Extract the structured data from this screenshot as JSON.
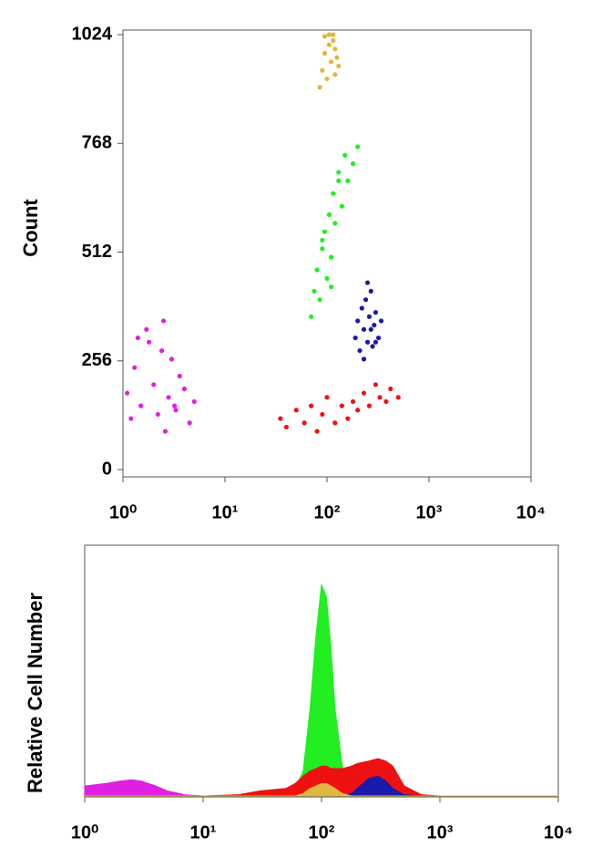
{
  "chart_data": [
    {
      "type": "scatter",
      "y_label": "Count",
      "xscale": "log",
      "xlim": [
        1,
        10000
      ],
      "ylim": [
        0,
        1024
      ],
      "xticks": [
        {
          "value": 1,
          "label": "10⁰"
        },
        {
          "value": 10,
          "label": "10¹"
        },
        {
          "value": 100,
          "label": "10²"
        },
        {
          "value": 1000,
          "label": "10³"
        },
        {
          "value": 10000,
          "label": "10⁴"
        }
      ],
      "yticks": [
        0,
        256,
        512,
        768,
        1024
      ],
      "series": [
        {
          "color": "#e020e0",
          "x": [
            1.1,
            1.3,
            1.5,
            1.8,
            2.0,
            2.2,
            2.5,
            2.8,
            3.0,
            3.3,
            3.6,
            4.0,
            4.5,
            5.0,
            1.2,
            1.7,
            2.4,
            3.2,
            1.4,
            2.6
          ],
          "values": [
            180,
            240,
            150,
            300,
            200,
            130,
            350,
            170,
            260,
            140,
            220,
            190,
            110,
            160,
            120,
            330,
            280,
            150,
            310,
            90
          ]
        },
        {
          "color": "#ee1111",
          "x": [
            35,
            40,
            50,
            60,
            70,
            80,
            90,
            100,
            120,
            140,
            160,
            180,
            200,
            230,
            260,
            300,
            330,
            380,
            420,
            500
          ],
          "values": [
            120,
            100,
            140,
            110,
            150,
            90,
            130,
            170,
            110,
            150,
            120,
            160,
            140,
            180,
            150,
            200,
            170,
            160,
            190,
            170
          ]
        },
        {
          "color": "#22ee22",
          "x": [
            70,
            75,
            80,
            85,
            90,
            95,
            100,
            105,
            110,
            115,
            120,
            130,
            140,
            150,
            160,
            180,
            200,
            90,
            110,
            130
          ],
          "values": [
            360,
            420,
            470,
            400,
            520,
            560,
            450,
            600,
            500,
            650,
            580,
            700,
            620,
            740,
            680,
            720,
            760,
            540,
            430,
            680
          ]
        },
        {
          "color": "#1a1aaa",
          "x": [
            190,
            200,
            210,
            220,
            230,
            240,
            250,
            260,
            270,
            280,
            290,
            300,
            320,
            340,
            250,
            230,
            270,
            300
          ],
          "values": [
            310,
            350,
            280,
            380,
            330,
            400,
            300,
            360,
            420,
            290,
            340,
            370,
            310,
            350,
            440,
            260,
            330,
            300
          ]
        },
        {
          "color": "#e0b840",
          "x": [
            85,
            90,
            95,
            100,
            105,
            110,
            115,
            120,
            125,
            130,
            95,
            105,
            115,
            120
          ],
          "values": [
            900,
            940,
            980,
            920,
            1000,
            960,
            1010,
            930,
            970,
            950,
            1020,
            1024,
            1024,
            990
          ]
        }
      ]
    },
    {
      "type": "area",
      "y_label": "Relative Cell Number",
      "xscale": "log",
      "xlim": [
        1,
        10000
      ],
      "ylim": [
        0,
        100
      ],
      "xticks": [
        {
          "value": 1,
          "label": "10⁰"
        },
        {
          "value": 10,
          "label": "10¹"
        },
        {
          "value": 100,
          "label": "10²"
        },
        {
          "value": 1000,
          "label": "10³"
        },
        {
          "value": 10000,
          "label": "10⁴"
        }
      ],
      "x": [
        1,
        1.5,
        2,
        2.5,
        3,
        4,
        5,
        7,
        10,
        20,
        30,
        50,
        60,
        70,
        80,
        90,
        100,
        110,
        120,
        130,
        150,
        180,
        200,
        250,
        300,
        350,
        400,
        500,
        700,
        1000,
        10000
      ],
      "series": [
        {
          "color": "#e020e0",
          "values": [
            4,
            5,
            6,
            6.5,
            6,
            4,
            2,
            0.5,
            0,
            0,
            0,
            0,
            0,
            0,
            0,
            0,
            0,
            0,
            0,
            0,
            0,
            0,
            0,
            0,
            0,
            0,
            0,
            0,
            0,
            0,
            0
          ]
        },
        {
          "color": "#22ee22",
          "values": [
            0,
            0,
            0,
            0,
            0,
            0,
            0,
            0,
            0,
            0,
            0,
            0,
            3,
            10,
            35,
            65,
            85,
            80,
            60,
            35,
            12,
            3,
            0,
            0,
            0,
            0,
            0,
            0,
            0,
            0,
            0
          ]
        },
        {
          "color": "#ee1111",
          "values": [
            0,
            0,
            0,
            0,
            0,
            0,
            0,
            0,
            0,
            0.5,
            2,
            3,
            5,
            8,
            10,
            11,
            12,
            12,
            11,
            11,
            11,
            12,
            13,
            14,
            15,
            14,
            12,
            4,
            0.5,
            0,
            0
          ]
        },
        {
          "color": "#1a1aaa",
          "values": [
            0,
            0,
            0,
            0,
            0,
            0,
            0,
            0,
            0,
            0,
            0,
            0,
            0,
            0,
            0,
            0,
            0,
            0,
            0,
            0,
            0,
            1,
            3,
            7,
            8,
            6,
            3,
            0.5,
            0,
            0,
            0
          ]
        },
        {
          "color": "#e0b840",
          "values": [
            0,
            0,
            0,
            0,
            0,
            0,
            0,
            0,
            0,
            0,
            0,
            0,
            0,
            1,
            3,
            4,
            5,
            5,
            4,
            3,
            1,
            0,
            0,
            0,
            0,
            0,
            0,
            0,
            0,
            0,
            0
          ]
        }
      ]
    }
  ]
}
